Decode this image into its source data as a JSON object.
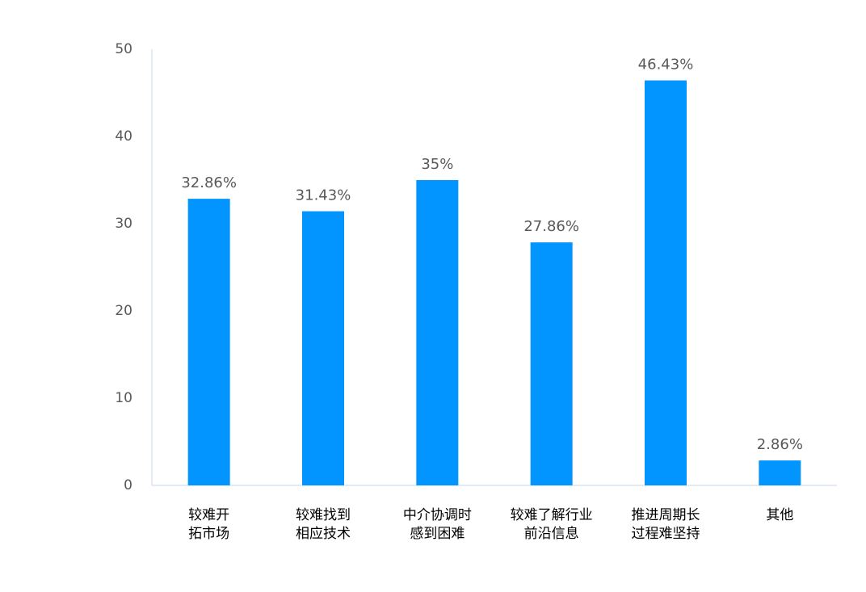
{
  "chart_data": {
    "type": "bar",
    "categories": [
      [
        "较难开",
        "拓市场"
      ],
      [
        "较难找到",
        "相应技术"
      ],
      [
        "中介协调时",
        "感到困难"
      ],
      [
        "较难了解行业",
        "前沿信息"
      ],
      [
        "推进周期长",
        "过程难坚持"
      ],
      [
        "其他"
      ]
    ],
    "values": [
      32.86,
      31.43,
      35,
      27.86,
      46.43,
      2.86
    ],
    "data_labels": [
      "32.86%",
      "31.43%",
      "35%",
      "27.86%",
      "46.43%",
      "2.86%"
    ],
    "ylim": [
      0,
      50
    ],
    "yticks": [
      0,
      10,
      20,
      30,
      40,
      50
    ],
    "grid": false,
    "legend": "none",
    "bar_color": "#0395FF",
    "axis_color": "#C9D6EA"
  }
}
